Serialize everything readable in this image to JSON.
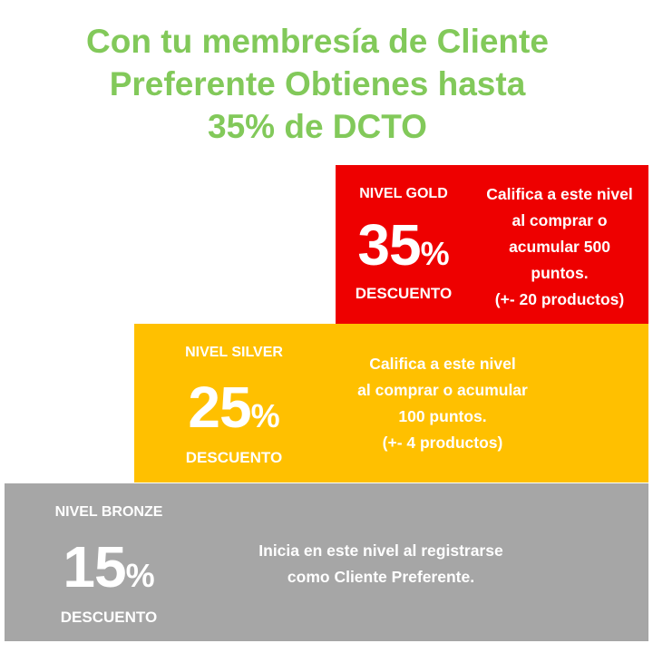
{
  "headline": {
    "line1": "Con tu membresía de Cliente",
    "line2": "Preferente Obtienes hasta",
    "line3": "35% de DCTO"
  },
  "tiers": {
    "gold": {
      "level": "NIVEL GOLD",
      "number": "35",
      "percent_sign": "%",
      "discount_label": "DESCUENTO",
      "lines": [
        "Califica a este nivel",
        "al comprar o",
        "acumular 500",
        "puntos.",
        "(+- 20 productos)"
      ]
    },
    "silver": {
      "level": "NIVEL SILVER",
      "number": "25",
      "percent_sign": "%",
      "discount_label": "DESCUENTO",
      "lines": [
        "Califica a este nivel",
        "al comprar o acumular",
        "100 puntos.",
        "(+- 4 productos)"
      ]
    },
    "bronze": {
      "level": "NIVEL BRONZE",
      "number": "15",
      "percent_sign": "%",
      "discount_label": "DESCUENTO",
      "lines": [
        "Inicia en este nivel al registrarse",
        "como Cliente Preferente."
      ]
    }
  },
  "colors": {
    "headline": "#82c95a",
    "gold": "#ee0000",
    "silver": "#ffc000",
    "bronze": "#a6a6a6"
  }
}
